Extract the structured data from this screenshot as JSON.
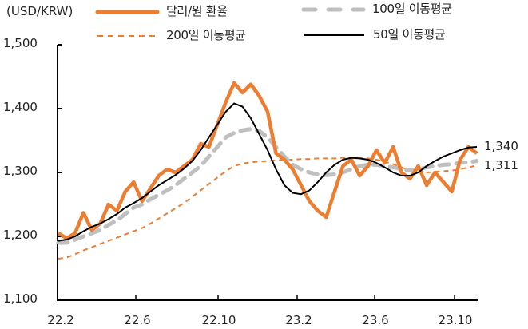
{
  "chart_data": {
    "type": "line",
    "title": "",
    "unit_label": "(USD/KRW)",
    "xlabel": "",
    "ylabel": "(USD/KRW)",
    "ylim": [
      1100,
      1500
    ],
    "yticks": [
      "1,100",
      "1,200",
      "1,300",
      "1,400",
      "1,500"
    ],
    "ytick_values": [
      1100,
      1200,
      1300,
      1400,
      1500
    ],
    "xticks": [
      "22.2",
      "22.6",
      "22.10",
      "23.2",
      "23.6",
      "23.10"
    ],
    "grid": false,
    "legend_position": "top",
    "x": [
      0,
      2,
      4,
      6,
      8,
      10,
      12,
      14,
      16,
      18,
      20,
      22,
      24,
      26,
      28,
      30,
      32,
      34,
      36,
      38,
      40,
      42,
      44,
      46,
      48,
      50,
      52,
      54,
      56,
      58,
      60,
      62,
      64,
      66,
      68,
      70,
      72,
      74,
      76,
      78,
      80,
      82,
      84,
      86,
      88,
      90,
      92,
      94,
      96,
      98,
      100
    ],
    "series": [
      {
        "name": "달러/원 환율",
        "style": "solid-thick",
        "color": "#ED7D31",
        "values": [
          1205,
          1197,
          1205,
          1237,
          1210,
          1220,
          1250,
          1240,
          1270,
          1285,
          1255,
          1275,
          1295,
          1305,
          1300,
          1310,
          1320,
          1345,
          1340,
          1375,
          1410,
          1440,
          1425,
          1438,
          1420,
          1395,
          1330,
          1320,
          1305,
          1280,
          1255,
          1240,
          1230,
          1270,
          1310,
          1320,
          1295,
          1310,
          1335,
          1315,
          1340,
          1300,
          1290,
          1310,
          1280,
          1300,
          1285,
          1270,
          1320,
          1340,
          1330
        ]
      },
      {
        "name": "100일 이동평균",
        "style": "dashed-thick",
        "color": "#BFBFBF",
        "values": [
          1190,
          1190,
          1195,
          1200,
          1205,
          1210,
          1218,
          1225,
          1235,
          1245,
          1250,
          1258,
          1265,
          1272,
          1280,
          1290,
          1300,
          1310,
          1325,
          1340,
          1355,
          1362,
          1366,
          1368,
          1365,
          1355,
          1340,
          1325,
          1312,
          1305,
          1300,
          1297,
          1296,
          1297,
          1300,
          1305,
          1310,
          1312,
          1312,
          1310,
          1308,
          1305,
          1303,
          1305,
          1308,
          1310,
          1312,
          1313,
          1315,
          1316,
          1318
        ]
      },
      {
        "name": "200일 이동평균",
        "style": "dashed-thin",
        "color": "#ED7D31",
        "values": [
          1165,
          1167,
          1172,
          1178,
          1183,
          1188,
          1193,
          1198,
          1203,
          1208,
          1213,
          1220,
          1228,
          1236,
          1244,
          1252,
          1262,
          1272,
          1282,
          1292,
          1302,
          1310,
          1314,
          1316,
          1317,
          1318,
          1319,
          1320,
          1320,
          1321,
          1321,
          1322,
          1322,
          1322,
          1323,
          1323,
          1323,
          1322,
          1320,
          1317,
          1313,
          1308,
          1303,
          1300,
          1300,
          1301,
          1302,
          1303,
          1305,
          1308,
          1311
        ]
      },
      {
        "name": "50일 이동평균",
        "style": "solid-thin",
        "color": "#000000",
        "values": [
          1193,
          1195,
          1200,
          1208,
          1215,
          1220,
          1227,
          1235,
          1245,
          1252,
          1260,
          1270,
          1280,
          1288,
          1296,
          1306,
          1318,
          1335,
          1355,
          1375,
          1395,
          1408,
          1403,
          1385,
          1360,
          1335,
          1305,
          1280,
          1268,
          1266,
          1272,
          1285,
          1300,
          1312,
          1320,
          1323,
          1322,
          1320,
          1315,
          1308,
          1300,
          1295,
          1295,
          1300,
          1310,
          1318,
          1325,
          1330,
          1335,
          1339,
          1340
        ]
      }
    ],
    "end_labels": [
      {
        "series": "50일 이동평균",
        "value": 1340,
        "label": "1,340"
      },
      {
        "series": "200일 이동평균",
        "value": 1311,
        "label": "1,311"
      }
    ]
  },
  "legend": {
    "items": [
      {
        "label": "달러/원 환율"
      },
      {
        "label": "100일 이동평균"
      },
      {
        "label": "200일 이동평균"
      },
      {
        "label": "50일 이동평균"
      }
    ]
  }
}
